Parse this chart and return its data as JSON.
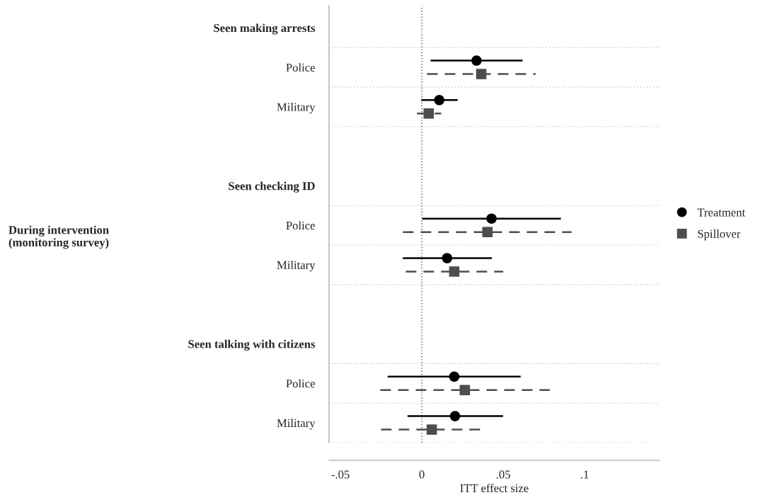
{
  "chart_data": {
    "type": "scatter",
    "orientation": "horizontal",
    "categories": [
      "Seen making arrests",
      "Police",
      "Military",
      null,
      "Seen checking ID",
      "Police",
      "Military",
      null,
      "Seen talking with citizens",
      "Police",
      "Military"
    ],
    "series": [
      {
        "name": "Treatment",
        "color": "#000000",
        "marker": "circle",
        "line_style": "solid",
        "values": [
          null,
          0.0336,
          0.0107,
          null,
          null,
          0.0428,
          0.0155,
          null,
          null,
          0.0199,
          0.0204
        ],
        "errors": [
          null,
          [
            0.0054,
            0.0619
          ],
          [
            -0.0004,
            0.022
          ],
          null,
          null,
          [
            0.0003,
            0.0854
          ],
          [
            -0.0117,
            0.043
          ],
          null,
          null,
          [
            -0.021,
            0.0607
          ],
          [
            -0.0088,
            0.0499
          ]
        ]
      },
      {
        "name": "Spillover",
        "color": "#4d4d4d",
        "marker": "square",
        "line_style": "dashed",
        "values": [
          null,
          0.0365,
          0.0042,
          null,
          null,
          0.0403,
          0.0199,
          null,
          null,
          0.0264,
          0.0061
        ],
        "errors": [
          null,
          [
            0.0032,
            0.0699
          ],
          [
            -0.003,
            0.0119
          ],
          null,
          null,
          [
            -0.0116,
            0.092
          ],
          [
            -0.0099,
            0.05
          ],
          null,
          null,
          [
            -0.0255,
            0.0786
          ],
          [
            -0.0251,
            0.0372
          ]
        ]
      }
    ],
    "xlabel": "ITT effect size",
    "annotations": [
      "During intervention\n(monitoring survey)"
    ],
    "xlim": [
      -0.057,
      0.146
    ],
    "xticks": [
      {
        "value": -0.05,
        "label": "-.05"
      },
      0,
      {
        "value": 0.05,
        "label": ".05"
      },
      {
        "value": 0.1,
        "label": ".1"
      }
    ],
    "ref_lines": [
      {
        "axis": "x",
        "value": 0,
        "line_style": "dotted",
        "color": "#555555"
      }
    ],
    "grid": "y",
    "legend": "right"
  }
}
